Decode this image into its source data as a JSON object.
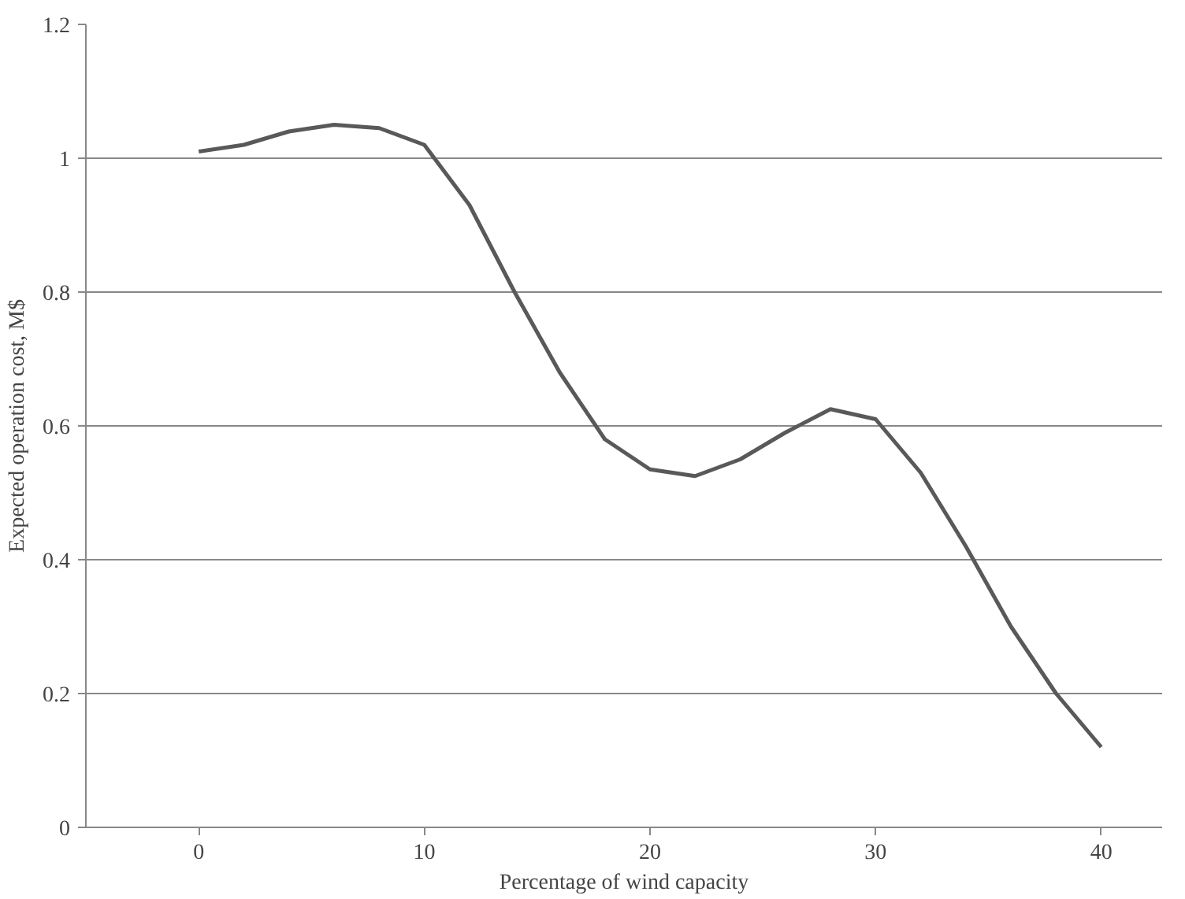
{
  "chart_data": {
    "type": "line",
    "xlabel": "Percentage of wind capacity",
    "ylabel": "Expected operation cost, M$",
    "x": [
      0,
      2,
      4,
      6,
      8,
      10,
      12,
      14,
      16,
      18,
      20,
      22,
      24,
      26,
      28,
      30,
      32,
      34,
      36,
      38,
      40
    ],
    "series": [
      {
        "color": "#595959",
        "values": [
          1.01,
          1.02,
          1.04,
          1.05,
          1.045,
          1.02,
          0.93,
          0.8,
          0.68,
          0.58,
          0.535,
          0.525,
          0.55,
          0.59,
          0.625,
          0.61,
          0.53,
          0.42,
          0.3,
          0.2,
          0.12
        ]
      }
    ],
    "xlim": [
      -5,
      42.7
    ],
    "xticks": [
      0,
      10,
      20,
      30,
      40
    ],
    "ylim": [
      0,
      1.2
    ],
    "yticks": [
      0,
      0.2,
      0.4,
      0.6,
      0.8,
      1,
      1.2
    ],
    "grid": "y",
    "marker": "none",
    "line_style": "solid"
  }
}
